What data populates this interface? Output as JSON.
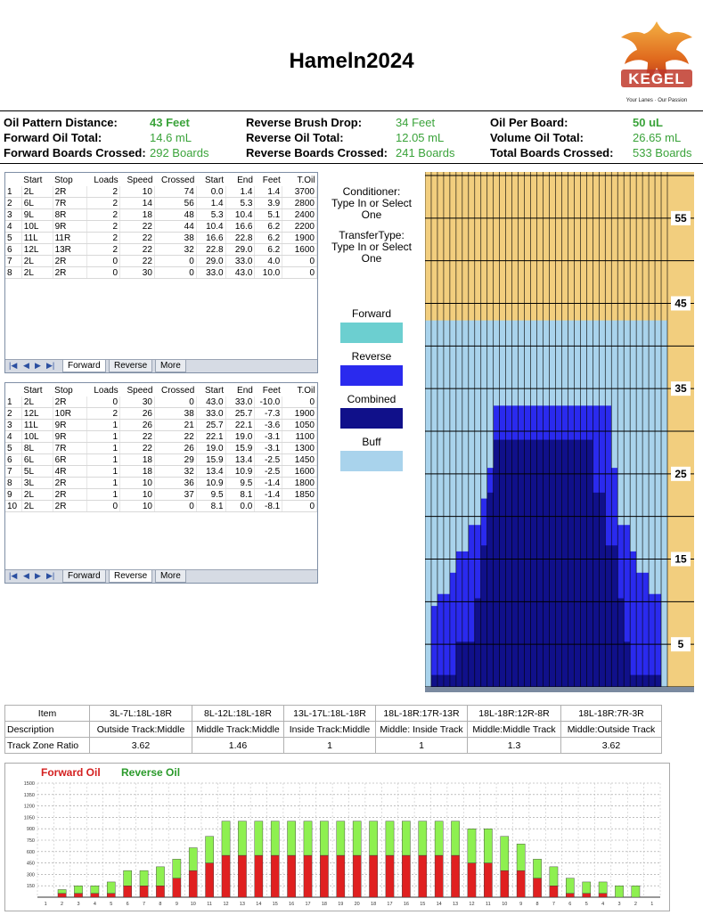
{
  "title": "Hameln2024",
  "logo": {
    "brand": "KEGEL",
    "tagline": "Your Lanes · Our Passion"
  },
  "colors": {
    "forward": "#6ccfd0",
    "reverse": "#2a2aee",
    "combined": "#10108a",
    "buff": "#a9d3ec",
    "lane_wood": "#f2ce7e",
    "fwd_bar": "#e02020",
    "rev_bar": "#8ef050"
  },
  "info": {
    "col1": [
      {
        "label": "Oil Pattern Distance:",
        "value": "43 Feet",
        "bold": true
      },
      {
        "label": "Forward Oil Total:",
        "value": "14.6 mL",
        "bold": false
      },
      {
        "label": "Forward Boards Crossed:",
        "value": "292 Boards",
        "bold": false
      }
    ],
    "col2": [
      {
        "label": "Reverse Brush Drop:",
        "value": "34 Feet",
        "bold": false
      },
      {
        "label": "Reverse Oil Total:",
        "value": "12.05 mL",
        "bold": false
      },
      {
        "label": "Reverse Boards Crossed:",
        "value": "241 Boards",
        "bold": false
      }
    ],
    "col3": [
      {
        "label": "Oil Per Board:",
        "value": "50 uL",
        "bold": true
      },
      {
        "label": "Volume Oil Total:",
        "value": "26.65 mL",
        "bold": false
      },
      {
        "label": "Total Boards Crossed:",
        "value": "533 Boards",
        "bold": false
      }
    ]
  },
  "table_headers": [
    "",
    "Start",
    "Stop",
    "Loads",
    "Speed",
    "Crossed",
    "Start",
    "End",
    "Feet",
    "T.Oil"
  ],
  "forward_rows": [
    [
      "1",
      "2L",
      "2R",
      "2",
      "10",
      "74",
      "0.0",
      "1.4",
      "1.4",
      "3700"
    ],
    [
      "2",
      "6L",
      "7R",
      "2",
      "14",
      "56",
      "1.4",
      "5.3",
      "3.9",
      "2800"
    ],
    [
      "3",
      "9L",
      "8R",
      "2",
      "18",
      "48",
      "5.3",
      "10.4",
      "5.1",
      "2400"
    ],
    [
      "4",
      "10L",
      "9R",
      "2",
      "22",
      "44",
      "10.4",
      "16.6",
      "6.2",
      "2200"
    ],
    [
      "5",
      "11L",
      "11R",
      "2",
      "22",
      "38",
      "16.6",
      "22.8",
      "6.2",
      "1900"
    ],
    [
      "6",
      "12L",
      "13R",
      "2",
      "22",
      "32",
      "22.8",
      "29.0",
      "6.2",
      "1600"
    ],
    [
      "7",
      "2L",
      "2R",
      "0",
      "22",
      "0",
      "29.0",
      "33.0",
      "4.0",
      "0"
    ],
    [
      "8",
      "2L",
      "2R",
      "0",
      "30",
      "0",
      "33.0",
      "43.0",
      "10.0",
      "0"
    ]
  ],
  "reverse_rows": [
    [
      "1",
      "2L",
      "2R",
      "0",
      "30",
      "0",
      "43.0",
      "33.0",
      "-10.0",
      "0"
    ],
    [
      "2",
      "12L",
      "10R",
      "2",
      "26",
      "38",
      "33.0",
      "25.7",
      "-7.3",
      "1900"
    ],
    [
      "3",
      "11L",
      "9R",
      "1",
      "26",
      "21",
      "25.7",
      "22.1",
      "-3.6",
      "1050"
    ],
    [
      "4",
      "10L",
      "9R",
      "1",
      "22",
      "22",
      "22.1",
      "19.0",
      "-3.1",
      "1100"
    ],
    [
      "5",
      "8L",
      "7R",
      "1",
      "22",
      "26",
      "19.0",
      "15.9",
      "-3.1",
      "1300"
    ],
    [
      "6",
      "6L",
      "6R",
      "1",
      "18",
      "29",
      "15.9",
      "13.4",
      "-2.5",
      "1450"
    ],
    [
      "7",
      "5L",
      "4R",
      "1",
      "18",
      "32",
      "13.4",
      "10.9",
      "-2.5",
      "1600"
    ],
    [
      "8",
      "3L",
      "2R",
      "1",
      "10",
      "36",
      "10.9",
      "9.5",
      "-1.4",
      "1800"
    ],
    [
      "9",
      "2L",
      "2R",
      "1",
      "10",
      "37",
      "9.5",
      "8.1",
      "-1.4",
      "1850"
    ],
    [
      "10",
      "2L",
      "2R",
      "0",
      "10",
      "0",
      "8.1",
      "0.0",
      "-8.1",
      "0"
    ]
  ],
  "tabs": {
    "forward": "Forward",
    "reverse": "Reverse",
    "more": "More"
  },
  "middle": {
    "conditioner": "Conditioner:\nType In or Select\nOne",
    "transfer": "TransferType:\nType In or Select\nOne",
    "legend": [
      "Forward",
      "Reverse",
      "Combined",
      "Buff"
    ]
  },
  "lane_y_labels": [
    "55",
    "45",
    "35",
    "25",
    "15",
    "5"
  ],
  "track_zone": {
    "row_labels": [
      "Item",
      "Description",
      "Track Zone Ratio"
    ],
    "columns": [
      {
        "item": "3L-7L:18L-18R",
        "desc": "Outside Track:Middle",
        "ratio": "3.62"
      },
      {
        "item": "8L-12L:18L-18R",
        "desc": "Middle Track:Middle",
        "ratio": "1.46"
      },
      {
        "item": "13L-17L:18L-18R",
        "desc": "Inside Track:Middle",
        "ratio": "1"
      },
      {
        "item": "18L-18R:17R-13R",
        "desc": "Middle: Inside Track",
        "ratio": "1"
      },
      {
        "item": "18L-18R:12R-8R",
        "desc": "Middle:Middle Track",
        "ratio": "1.3"
      },
      {
        "item": "18L-18R:7R-3R",
        "desc": "Middle:Outside Track",
        "ratio": "3.62"
      }
    ]
  },
  "chart_data": {
    "type": "bar",
    "stacked": true,
    "legend": [
      "Forward Oil",
      "Reverse Oil"
    ],
    "ylim": [
      0,
      1500
    ],
    "yticks": [
      150,
      300,
      450,
      600,
      750,
      900,
      1050,
      1200,
      1350,
      1500
    ],
    "categories": [
      "1",
      "2",
      "3",
      "4",
      "5",
      "6",
      "7",
      "8",
      "9",
      "10",
      "11",
      "12",
      "13",
      "14",
      "15",
      "16",
      "17",
      "18",
      "19",
      "20",
      "18",
      "17",
      "16",
      "15",
      "14",
      "13",
      "12",
      "11",
      "10",
      "9",
      "8",
      "7",
      "6",
      "5",
      "4",
      "3",
      "2",
      "1"
    ],
    "series": [
      {
        "name": "Forward Oil",
        "values": [
          0,
          50,
          50,
          50,
          50,
          150,
          150,
          150,
          250,
          350,
          450,
          550,
          550,
          550,
          550,
          550,
          550,
          550,
          550,
          550,
          550,
          550,
          550,
          550,
          550,
          550,
          450,
          450,
          350,
          350,
          250,
          150,
          50,
          50,
          50,
          0,
          0,
          0
        ]
      },
      {
        "name": "Reverse Oil",
        "values": [
          0,
          50,
          100,
          100,
          150,
          200,
          200,
          250,
          250,
          300,
          350,
          450,
          450,
          450,
          450,
          450,
          450,
          450,
          450,
          450,
          450,
          450,
          450,
          450,
          450,
          450,
          450,
          450,
          450,
          350,
          250,
          250,
          200,
          150,
          150,
          150,
          150,
          0
        ]
      }
    ]
  }
}
